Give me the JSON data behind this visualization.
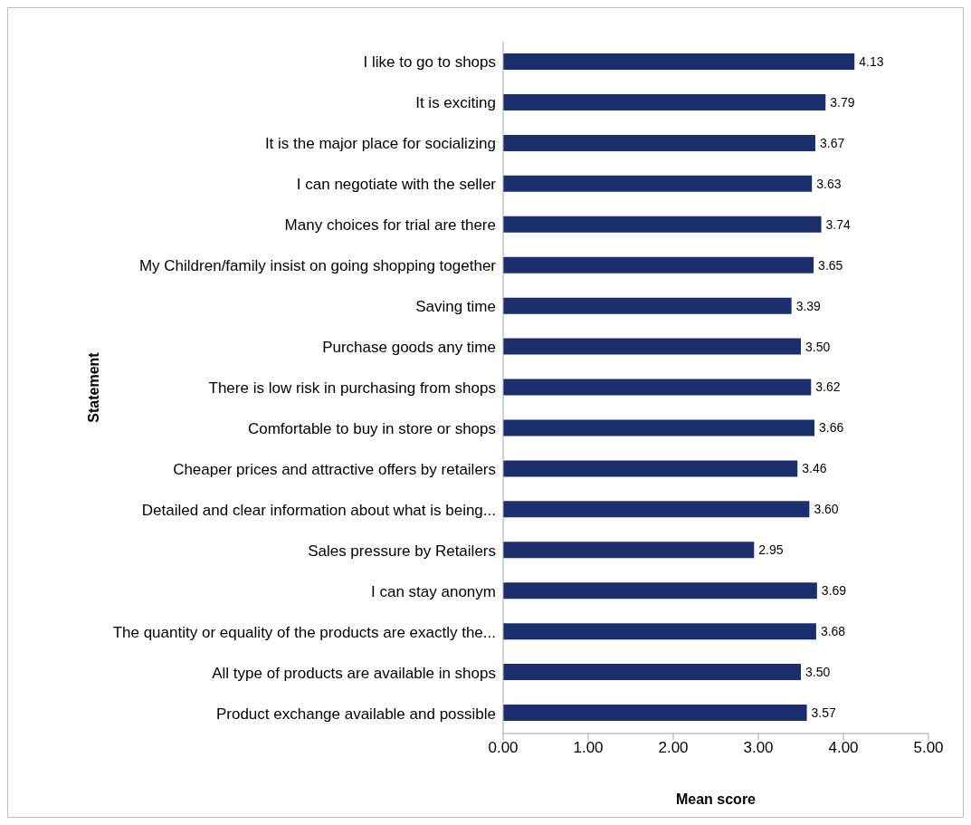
{
  "chart_data": {
    "type": "bar",
    "orientation": "horizontal",
    "categories": [
      "I like to go to shops",
      "It is exciting",
      "It is the major place for socializing",
      "I can negotiate with the seller",
      "Many choices for trial are there",
      "My Children/family insist on going shopping together",
      "Saving time",
      "Purchase goods any time",
      "There is low risk in purchasing from shops",
      "Comfortable to buy in store or shops",
      "Cheaper prices and attractive offers by retailers",
      "Detailed and clear information about what is being...",
      "Sales pressure by Retailers",
      "I can stay anonym",
      "The quantity or equality of the products are exactly the...",
      "All type of products are available in shops",
      "Product exchange available and possible"
    ],
    "values": [
      4.13,
      3.79,
      3.67,
      3.63,
      3.74,
      3.65,
      3.39,
      3.5,
      3.62,
      3.66,
      3.46,
      3.6,
      2.95,
      3.69,
      3.68,
      3.5,
      3.57
    ],
    "value_labels": [
      "4.13",
      "3.79",
      "3.67",
      "3.63",
      "3.74",
      "3.65",
      "3.39",
      "3.50",
      "3.62",
      "3.66",
      "3.46",
      "3.60",
      "2.95",
      "3.69",
      "3.68",
      "3.50",
      "3.57"
    ],
    "color": "#1b2f6e",
    "xlim": [
      0,
      5
    ],
    "xticks": [
      {
        "value": 0,
        "label": "0.00"
      },
      {
        "value": 1,
        "label": "1.00"
      },
      {
        "value": 2,
        "label": "2.00"
      },
      {
        "value": 3,
        "label": "3.00"
      },
      {
        "value": 4,
        "label": "4.00"
      },
      {
        "value": 5,
        "label": "5.00"
      }
    ],
    "xlabel": "Mean score",
    "ylabel": "Statement"
  }
}
